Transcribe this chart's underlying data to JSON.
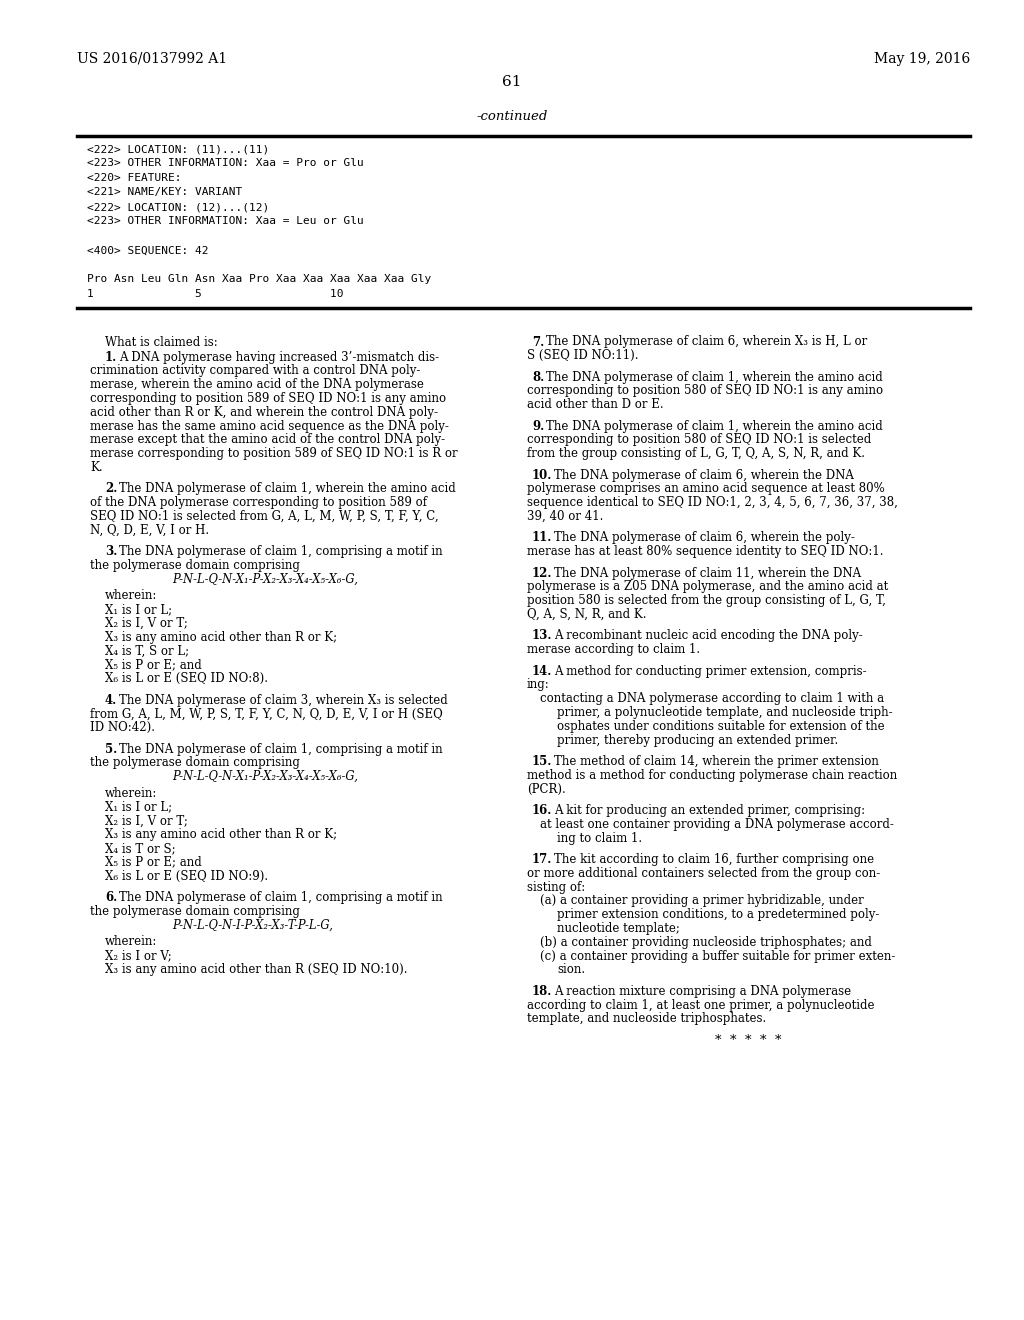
{
  "background_color": "#ffffff",
  "page_width": 10.24,
  "page_height": 13.2,
  "dpi": 100,
  "header_left": "US 2016/0137992 A1",
  "header_right": "May 19, 2016",
  "page_number": "61",
  "continued_text": "-continued",
  "mono_section_lines": [
    "<222> LOCATION: (11)...(11)",
    "<223> OTHER INFORMATION: Xaa = Pro or Glu",
    "<220> FEATURE:",
    "<221> NAME/KEY: VARIANT",
    "<222> LOCATION: (12)...(12)",
    "<223> OTHER INFORMATION: Xaa = Leu or Glu",
    "",
    "<400> SEQUENCE: 42",
    "",
    "Pro Asn Leu Gln Asn Xaa Pro Xaa Xaa Xaa Xaa Xaa Gly",
    "1               5                   10"
  ],
  "left_claims": [
    {
      "type": "whatisclaimed"
    },
    {
      "type": "claim_start",
      "num": "1",
      "text": "A DNA polymerase having increased 3’-mismatch dis-"
    },
    {
      "type": "claim_cont",
      "text": "crimination activity compared with a control DNA poly-"
    },
    {
      "type": "claim_cont",
      "text": "merase, wherein the amino acid of the DNA polymerase"
    },
    {
      "type": "claim_cont",
      "text": "corresponding to position 589 of SEQ ID NO:1 is any amino"
    },
    {
      "type": "claim_cont",
      "text": "acid other than R or K, and wherein the control DNA poly-"
    },
    {
      "type": "claim_cont",
      "text": "merase has the same amino acid sequence as the DNA poly-"
    },
    {
      "type": "claim_cont",
      "text": "merase except that the amino acid of the control DNA poly-"
    },
    {
      "type": "claim_cont",
      "text": "merase corresponding to position 589 of SEQ ID NO:1 is R or"
    },
    {
      "type": "claim_cont",
      "text": "K."
    },
    {
      "type": "blank_half"
    },
    {
      "type": "claim_start",
      "num": "2",
      "text": "The DNA polymerase of claim 1, wherein the amino acid"
    },
    {
      "type": "claim_cont",
      "text": "of the DNA polymerase corresponding to position 589 of"
    },
    {
      "type": "claim_cont",
      "text": "SEQ ID NO:1 is selected from G, A, L, M, W, P, S, T, F, Y, C,"
    },
    {
      "type": "claim_cont",
      "text": "N, Q, D, E, V, I or H."
    },
    {
      "type": "blank_half"
    },
    {
      "type": "claim_start",
      "num": "3",
      "text": "The DNA polymerase of claim 1, comprising a motif in"
    },
    {
      "type": "claim_cont",
      "text": "the polymerase domain comprising"
    },
    {
      "type": "formula",
      "text": "P-N-L-Q-N-X₁-P-X₂-X₃-X₄-X₅-X₆-G,"
    },
    {
      "type": "wherein_label"
    },
    {
      "type": "wherein_line",
      "text": "X₁ is I or L;"
    },
    {
      "type": "wherein_line",
      "text": "X₂ is I, V or T;"
    },
    {
      "type": "wherein_line",
      "text": "X₃ is any amino acid other than R or K;"
    },
    {
      "type": "wherein_line",
      "text": "X₄ is T, S or L;"
    },
    {
      "type": "wherein_line",
      "text": "X₅ is P or E; and"
    },
    {
      "type": "wherein_line",
      "text": "X₆ is L or E (SEQ ID NO:8)."
    },
    {
      "type": "blank_half"
    },
    {
      "type": "claim_start",
      "num": "4",
      "text": "The DNA polymerase of claim 3, wherein X₃ is selected"
    },
    {
      "type": "claim_cont",
      "text": "from G, A, L, M, W, P, S, T, F, Y, C, N, Q, D, E, V, I or H (SEQ"
    },
    {
      "type": "claim_cont",
      "text": "ID NO:42)."
    },
    {
      "type": "blank_half"
    },
    {
      "type": "claim_start",
      "num": "5",
      "text": "The DNA polymerase of claim 1, comprising a motif in"
    },
    {
      "type": "claim_cont",
      "text": "the polymerase domain comprising"
    },
    {
      "type": "formula",
      "text": "P-N-L-Q-N-X₁-P-X₂-X₃-X₄-X₅-X₆-G,"
    },
    {
      "type": "wherein_label"
    },
    {
      "type": "wherein_line",
      "text": "X₁ is I or L;"
    },
    {
      "type": "wherein_line",
      "text": "X₂ is I, V or T;"
    },
    {
      "type": "wherein_line",
      "text": "X₃ is any amino acid other than R or K;"
    },
    {
      "type": "wherein_line",
      "text": "X₄ is T or S;"
    },
    {
      "type": "wherein_line",
      "text": "X₅ is P or E; and"
    },
    {
      "type": "wherein_line",
      "text": "X₆ is L or E (SEQ ID NO:9)."
    },
    {
      "type": "blank_half"
    },
    {
      "type": "claim_start",
      "num": "6",
      "text": "The DNA polymerase of claim 1, comprising a motif in"
    },
    {
      "type": "claim_cont",
      "text": "the polymerase domain comprising"
    },
    {
      "type": "formula",
      "text": "P-N-L-Q-N-I-P-X₂-X₃-T-P-L-G,"
    },
    {
      "type": "wherein_label"
    },
    {
      "type": "wherein_line",
      "text": "X₂ is I or V;"
    },
    {
      "type": "wherein_line",
      "text": "X₃ is any amino acid other than R (SEQ ID NO:10)."
    }
  ],
  "right_claims": [
    {
      "type": "claim_start",
      "num": "7",
      "text": "The DNA polymerase of claim 6, wherein X₃ is H, L or"
    },
    {
      "type": "claim_cont",
      "text": "S (SEQ ID NO:11)."
    },
    {
      "type": "blank_half"
    },
    {
      "type": "claim_start",
      "num": "8",
      "text": "The DNA polymerase of claim 1, wherein the amino acid"
    },
    {
      "type": "claim_cont",
      "text": "corresponding to position 580 of SEQ ID NO:1 is any amino"
    },
    {
      "type": "claim_cont",
      "text": "acid other than D or E."
    },
    {
      "type": "blank_half"
    },
    {
      "type": "claim_start",
      "num": "9",
      "text": "The DNA polymerase of claim 1, wherein the amino acid"
    },
    {
      "type": "claim_cont",
      "text": "corresponding to position 580 of SEQ ID NO:1 is selected"
    },
    {
      "type": "claim_cont",
      "text": "from the group consisting of L, G, T, Q, A, S, N, R, and K."
    },
    {
      "type": "blank_half"
    },
    {
      "type": "claim_start",
      "num": "10",
      "text": "The DNA polymerase of claim 6, wherein the DNA"
    },
    {
      "type": "claim_cont",
      "text": "polymerase comprises an amino acid sequence at least 80%"
    },
    {
      "type": "claim_cont",
      "text": "sequence identical to SEQ ID NO:1, 2, 3, 4, 5, 6, 7, 36, 37, 38,"
    },
    {
      "type": "claim_cont",
      "text": "39, 40 or 41."
    },
    {
      "type": "blank_half"
    },
    {
      "type": "claim_start",
      "num": "11",
      "text": "The DNA polymerase of claim 6, wherein the poly-"
    },
    {
      "type": "claim_cont",
      "text": "merase has at least 80% sequence identity to SEQ ID NO:1."
    },
    {
      "type": "blank_half"
    },
    {
      "type": "claim_start",
      "num": "12",
      "text": "The DNA polymerase of claim 11, wherein the DNA"
    },
    {
      "type": "claim_cont",
      "text": "polymerase is a Z05 DNA polymerase, and the amino acid at"
    },
    {
      "type": "claim_cont",
      "text": "position 580 is selected from the group consisting of L, G, T,"
    },
    {
      "type": "claim_cont",
      "text": "Q, A, S, N, R, and K."
    },
    {
      "type": "blank_half"
    },
    {
      "type": "claim_start",
      "num": "13",
      "text": "A recombinant nucleic acid encoding the DNA poly-"
    },
    {
      "type": "claim_cont",
      "text": "merase according to claim 1."
    },
    {
      "type": "blank_half"
    },
    {
      "type": "claim_start",
      "num": "14",
      "text": "A method for conducting primer extension, compris-"
    },
    {
      "type": "claim_cont",
      "text": "ing:"
    },
    {
      "type": "indent_line",
      "text": "contacting a DNA polymerase according to claim 1 with a"
    },
    {
      "type": "indent_line2",
      "text": "primer, a polynucleotide template, and nucleoside triph-"
    },
    {
      "type": "indent_line2",
      "text": "osphates under conditions suitable for extension of the"
    },
    {
      "type": "indent_line2",
      "text": "primer, thereby producing an extended primer."
    },
    {
      "type": "blank_half"
    },
    {
      "type": "claim_start",
      "num": "15",
      "text": "The method of claim 14, wherein the primer extension"
    },
    {
      "type": "claim_cont",
      "text": "method is a method for conducting polymerase chain reaction"
    },
    {
      "type": "claim_cont",
      "text": "(PCR)."
    },
    {
      "type": "blank_half"
    },
    {
      "type": "claim_start",
      "num": "16",
      "text": "A kit for producing an extended primer, comprising:"
    },
    {
      "type": "indent_line",
      "text": "at least one container providing a DNA polymerase accord-"
    },
    {
      "type": "indent_line2",
      "text": "ing to claim 1."
    },
    {
      "type": "blank_half"
    },
    {
      "type": "claim_start",
      "num": "17",
      "text": "The kit according to claim 16, further comprising one"
    },
    {
      "type": "claim_cont",
      "text": "or more additional containers selected from the group con-"
    },
    {
      "type": "claim_cont",
      "text": "sisting of:"
    },
    {
      "type": "indent_line",
      "text": "(a) a container providing a primer hybridizable, under"
    },
    {
      "type": "indent_line2",
      "text": "primer extension conditions, to a predetermined poly-"
    },
    {
      "type": "indent_line2",
      "text": "nucleotide template;"
    },
    {
      "type": "indent_line",
      "text": "(b) a container providing nucleoside triphosphates; and"
    },
    {
      "type": "indent_line",
      "text": "(c) a container providing a buffer suitable for primer exten-"
    },
    {
      "type": "indent_line2",
      "text": "sion."
    },
    {
      "type": "blank_half"
    },
    {
      "type": "claim_start",
      "num": "18",
      "text": "A reaction mixture comprising a DNA polymerase"
    },
    {
      "type": "claim_cont",
      "text": "according to claim 1, at least one primer, a polynucleotide"
    },
    {
      "type": "claim_cont",
      "text": "template, and nucleoside triphosphates."
    },
    {
      "type": "blank_half"
    },
    {
      "type": "asterisks",
      "text": "*  *  *  *  *"
    }
  ]
}
